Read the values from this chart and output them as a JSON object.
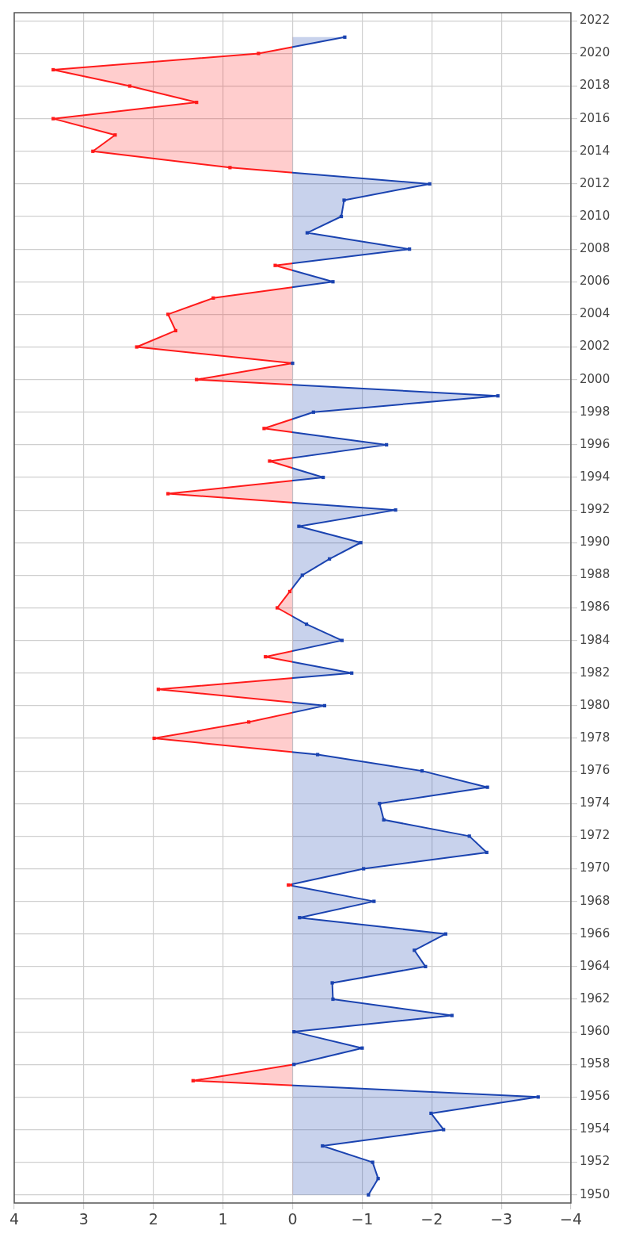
{
  "chart_data": {
    "type": "area",
    "legend": false,
    "series": [
      {
        "x": [
          -1.09,
          -1.23,
          -1.15,
          -0.43,
          -2.17,
          -1.99,
          -3.53,
          1.43,
          -0.02,
          -1.0,
          -0.02,
          -2.29,
          -0.58,
          -0.57,
          -1.91,
          -1.75,
          -2.2,
          -0.1,
          -1.17,
          0.06,
          -1.02,
          -2.79,
          -2.54,
          -1.31,
          -1.25,
          -2.8,
          -1.86,
          -0.36,
          1.99,
          0.63,
          -0.46,
          1.93,
          -0.85,
          0.39,
          -0.71,
          -0.2,
          0.22,
          0.04,
          -0.14,
          -0.53,
          -0.98,
          -0.09,
          -1.48,
          1.79,
          -0.44,
          0.33,
          -1.35,
          0.41,
          -0.3,
          -2.95,
          1.38,
          0,
          2.24,
          1.68,
          1.79,
          1.14,
          -0.58,
          0.25,
          -1.68,
          -0.21,
          -0.7,
          -0.74,
          -1.97,
          0.9,
          2.87,
          2.55,
          3.44,
          1.38,
          2.34,
          3.44,
          0.49,
          -0.75
        ],
        "values": [
          1950,
          1951,
          1952,
          1953,
          1954,
          1955,
          1956,
          1957,
          1958,
          1959,
          1960,
          1961,
          1962,
          1963,
          1964,
          1965,
          1966,
          1967,
          1968,
          1969,
          1970,
          1971,
          1972,
          1973,
          1974,
          1975,
          1976,
          1977,
          1978,
          1979,
          1980,
          1981,
          1982,
          1983,
          1984,
          1985,
          1986,
          1987,
          1988,
          1989,
          1990,
          1991,
          1992,
          1993,
          1994,
          1995,
          1996,
          1997,
          1998,
          1999,
          2000,
          2001,
          2002,
          2003,
          2004,
          2005,
          2006,
          2007,
          2008,
          2009,
          2010,
          2011,
          2012,
          2013,
          2014,
          2015,
          2016,
          2017,
          2018,
          2019,
          2020,
          2021
        ],
        "colors": [
          "#1a43b0",
          "#1a43b0",
          "#1a43b0",
          "#1a43b0",
          "#1a43b0",
          "#1a43b0",
          "#1a43b0",
          "#ff1a1a",
          "#1a43b0",
          "#1a43b0",
          "#1a43b0",
          "#1a43b0",
          "#1a43b0",
          "#1a43b0",
          "#1a43b0",
          "#1a43b0",
          "#1a43b0",
          "#1a43b0",
          "#1a43b0",
          "#ff1a1a",
          "#1a43b0",
          "#1a43b0",
          "#1a43b0",
          "#1a43b0",
          "#1a43b0",
          "#1a43b0",
          "#1a43b0",
          "#1a43b0",
          "#ff1a1a",
          "#ff1a1a",
          "#1a43b0",
          "#ff1a1a",
          "#1a43b0",
          "#ff1a1a",
          "#1a43b0",
          "#1a43b0",
          "#ff1a1a",
          "#ff1a1a",
          "#1a43b0",
          "#1a43b0",
          "#1a43b0",
          "#1a43b0",
          "#1a43b0",
          "#ff1a1a",
          "#1a43b0",
          "#ff1a1a",
          "#1a43b0",
          "#ff1a1a",
          "#1a43b0",
          "#1a43b0",
          "#ff1a1a",
          "#1a43b0",
          "#ff1a1a",
          "#ff1a1a",
          "#ff1a1a",
          "#ff1a1a",
          "#1a43b0",
          "#ff1a1a",
          "#1a43b0",
          "#1a43b0",
          "#1a43b0",
          "#1a43b0",
          "#1a43b0",
          "#ff1a1a",
          "#ff1a1a",
          "#ff1a1a",
          "#ff1a1a",
          "#ff1a1a",
          "#ff1a1a",
          "#ff1a1a",
          "#ff1a1a",
          "#1a43b0"
        ]
      }
    ],
    "xlim": [
      4,
      -4
    ],
    "xticks": [
      4,
      3,
      2,
      1,
      0,
      {
        "value": -1,
        "label": "−1"
      },
      {
        "value": -2,
        "label": "−2"
      },
      {
        "value": -3,
        "label": "−3"
      },
      {
        "value": -4,
        "label": "−4"
      }
    ],
    "ylim": [
      1949.5,
      2022.5
    ],
    "yticks": [
      1950,
      1952,
      1954,
      1956,
      1958,
      1960,
      1962,
      1964,
      1966,
      1968,
      1970,
      1972,
      1974,
      1976,
      1978,
      1980,
      1982,
      1984,
      1986,
      1988,
      1990,
      1992,
      1994,
      1996,
      1998,
      2000,
      2002,
      2004,
      2006,
      2008,
      2010,
      2012,
      2014,
      2016,
      2018,
      2020,
      2022
    ],
    "grid": true,
    "marker": "square",
    "line_style": "solid"
  }
}
